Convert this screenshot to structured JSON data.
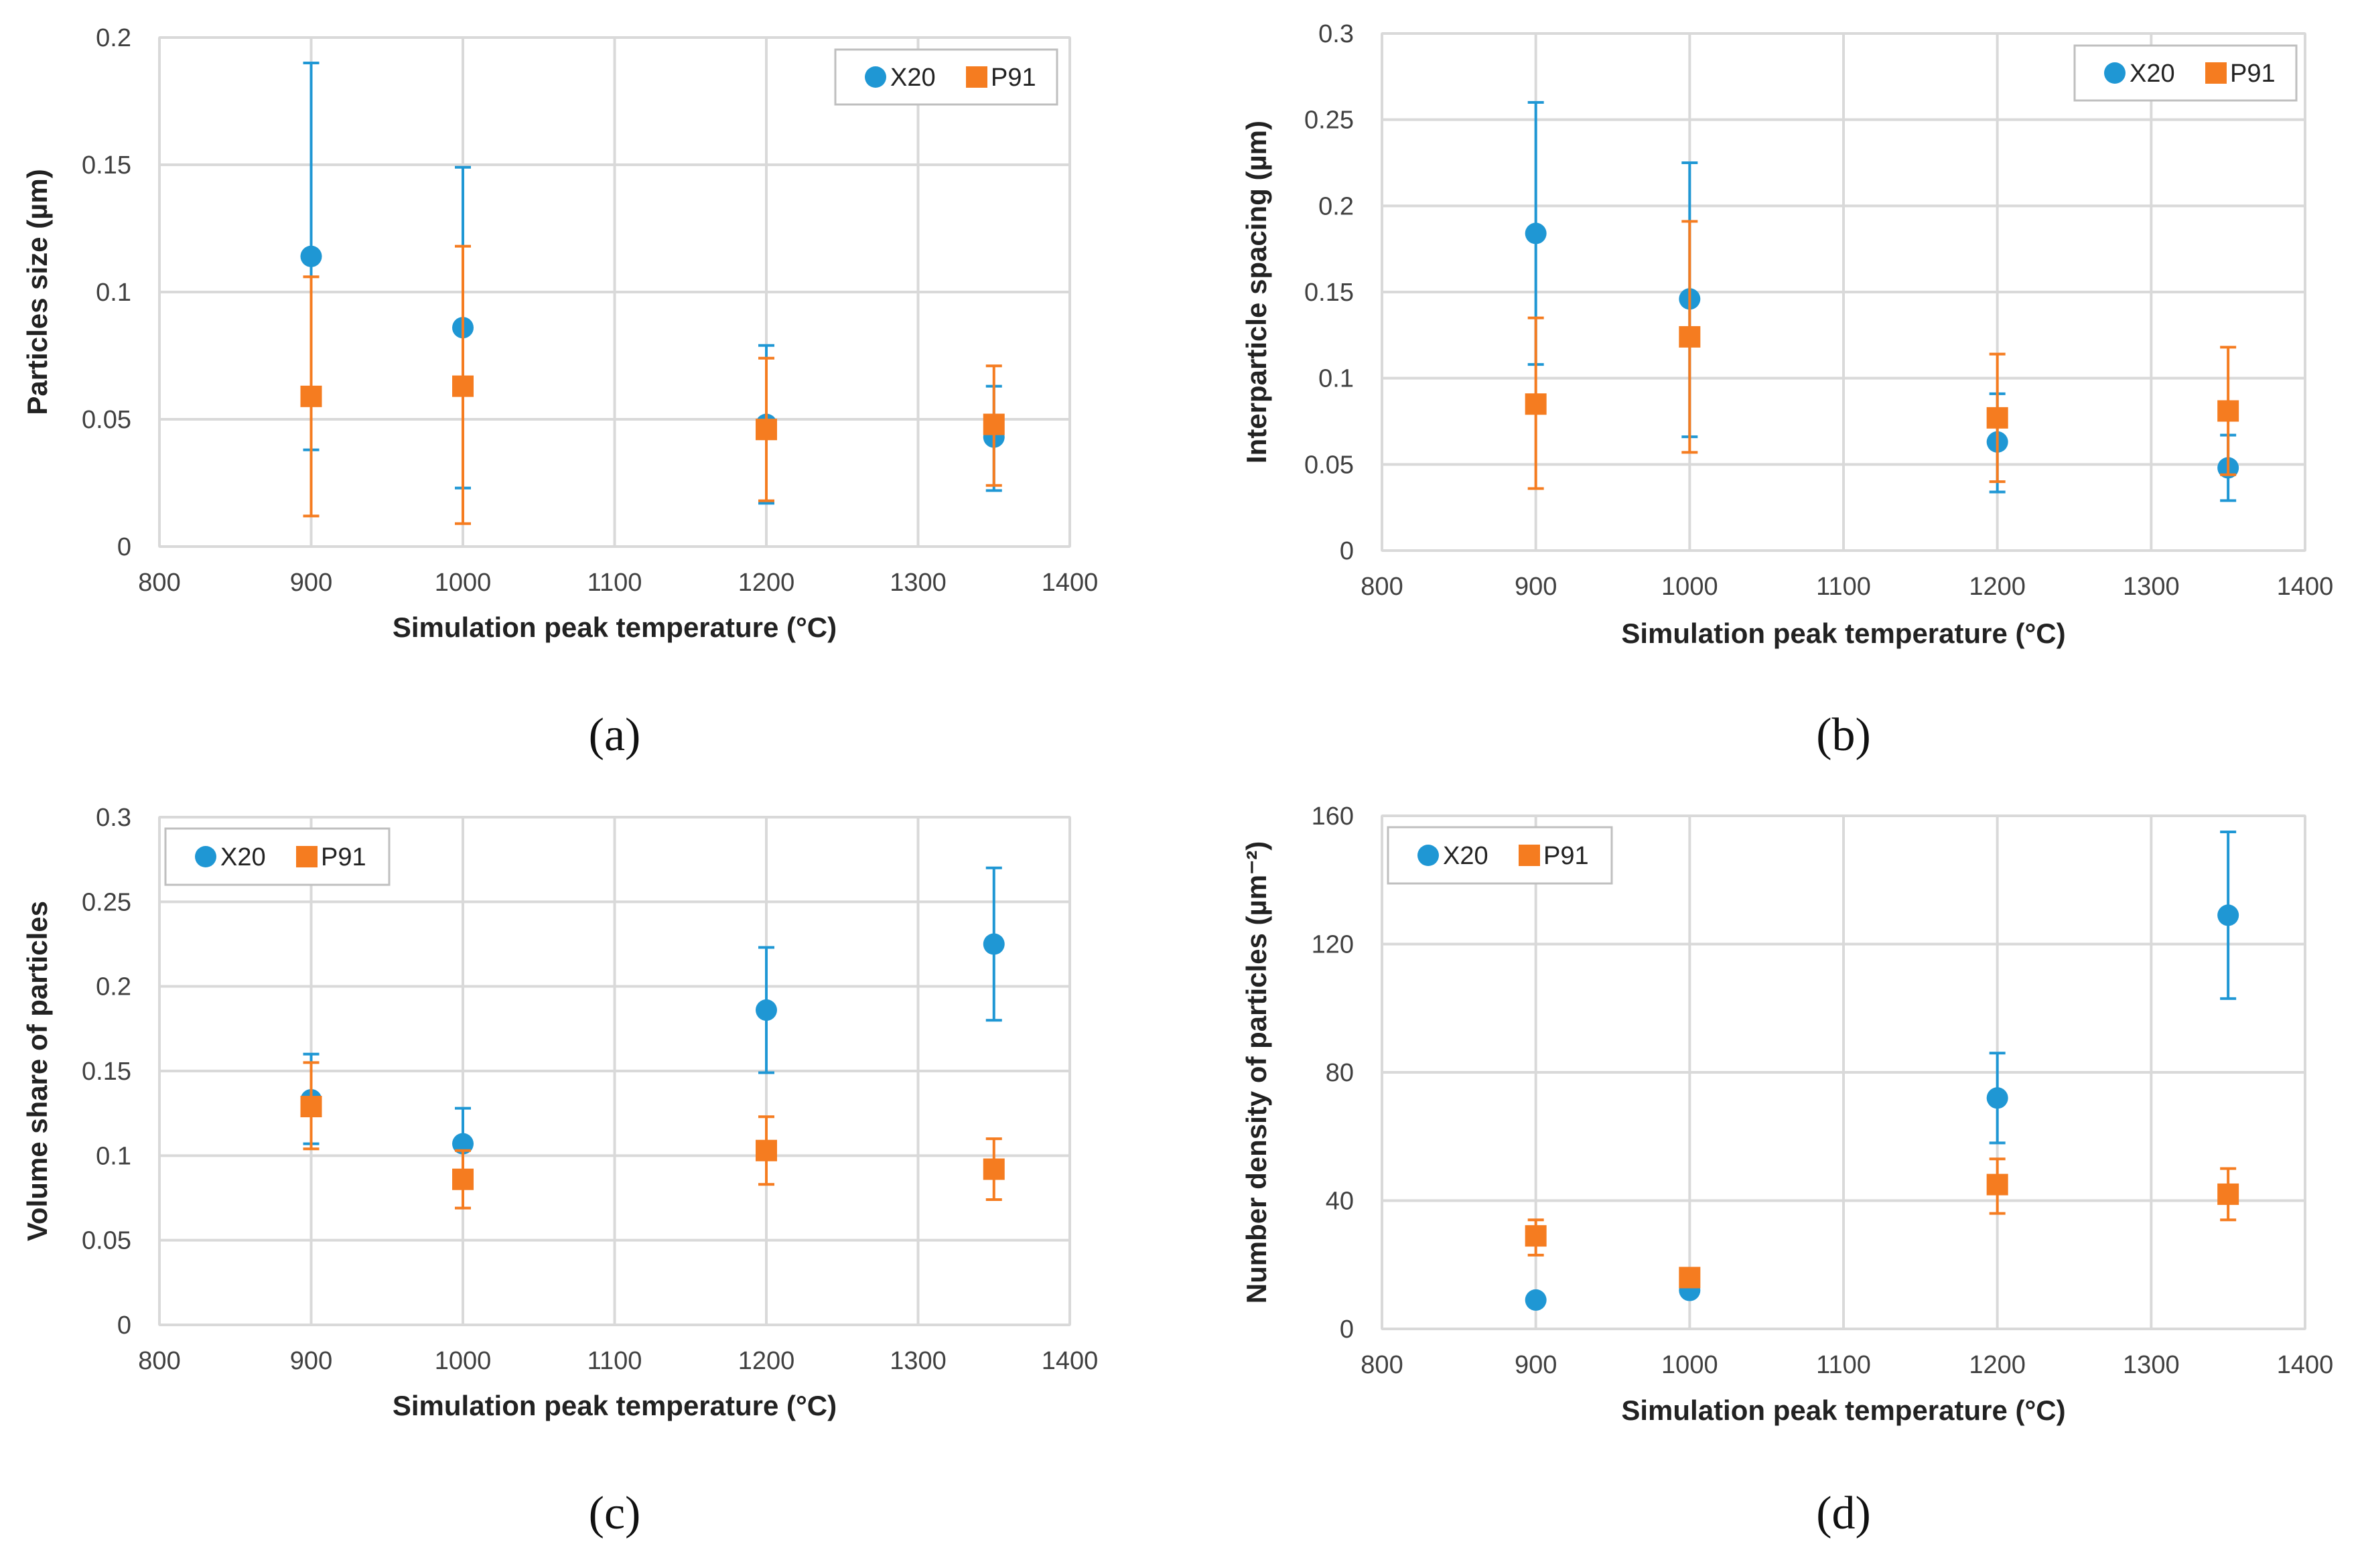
{
  "colors": {
    "X20": "#1f97d4",
    "P91": "#f57c20"
  },
  "chart_data": [
    {
      "type": "scatter",
      "panel_label": "(a)",
      "xlabel": "Simulation peak temperature (°C)",
      "ylabel": "Particles size (µm)",
      "xlim": [
        800,
        1400
      ],
      "ylim": [
        0,
        0.2
      ],
      "xticks": [
        "800",
        "900",
        "1000",
        "1100",
        "1200",
        "1300",
        "1400"
      ],
      "yticks": [
        "0",
        "0.05",
        "0.1",
        "0.15",
        "0.2"
      ],
      "grid": true,
      "legend_position": "top-right",
      "series": [
        {
          "name": "X20",
          "marker": "circle",
          "x": [
            900,
            1000,
            1200,
            1350
          ],
          "y": [
            0.114,
            0.086,
            0.048,
            0.043
          ],
          "err_low": [
            0.038,
            0.023,
            0.017,
            0.022
          ],
          "err_high": [
            0.19,
            0.149,
            0.079,
            0.063
          ]
        },
        {
          "name": "P91",
          "marker": "square",
          "x": [
            900,
            1000,
            1200,
            1350
          ],
          "y": [
            0.059,
            0.063,
            0.046,
            0.048
          ],
          "err_low": [
            0.012,
            0.009,
            0.018,
            0.024
          ],
          "err_high": [
            0.106,
            0.118,
            0.074,
            0.071
          ]
        }
      ]
    },
    {
      "type": "scatter",
      "panel_label": "(b)",
      "xlabel": "Simulation peak temperature (°C)",
      "ylabel": "Interparticle spacing (µm)",
      "xlim": [
        800,
        1400
      ],
      "ylim": [
        0,
        0.3
      ],
      "xticks": [
        "800",
        "900",
        "1000",
        "1100",
        "1200",
        "1300",
        "1400"
      ],
      "yticks": [
        "0",
        "0.05",
        "0.1",
        "0.15",
        "0.2",
        "0.25",
        "0.3"
      ],
      "grid": true,
      "legend_position": "top-right",
      "series": [
        {
          "name": "X20",
          "marker": "circle",
          "x": [
            900,
            1000,
            1200,
            1350
          ],
          "y": [
            0.184,
            0.146,
            0.063,
            0.048
          ],
          "err_low": [
            0.108,
            0.066,
            0.034,
            0.029
          ],
          "err_high": [
            0.26,
            0.225,
            0.091,
            0.067
          ]
        },
        {
          "name": "P91",
          "marker": "square",
          "x": [
            900,
            1000,
            1200,
            1350
          ],
          "y": [
            0.085,
            0.124,
            0.077,
            0.081
          ],
          "err_low": [
            0.036,
            0.057,
            0.04,
            0.044
          ],
          "err_high": [
            0.135,
            0.191,
            0.114,
            0.118
          ]
        }
      ]
    },
    {
      "type": "scatter",
      "panel_label": "(c)",
      "xlabel": "Simulation peak temperature (°C)",
      "ylabel": "Volume share of particles",
      "xlim": [
        800,
        1400
      ],
      "ylim": [
        0,
        0.3
      ],
      "xticks": [
        "800",
        "900",
        "1000",
        "1100",
        "1200",
        "1300",
        "1400"
      ],
      "yticks": [
        "0",
        "0.05",
        "0.1",
        "0.15",
        "0.2",
        "0.25",
        "0.3"
      ],
      "grid": true,
      "legend_position": "top-left",
      "series": [
        {
          "name": "X20",
          "marker": "circle",
          "x": [
            900,
            1000,
            1200,
            1350
          ],
          "y": [
            0.133,
            0.107,
            0.186,
            0.225
          ],
          "err_low": [
            0.107,
            0.086,
            0.149,
            0.18
          ],
          "err_high": [
            0.16,
            0.128,
            0.223,
            0.27
          ]
        },
        {
          "name": "P91",
          "marker": "square",
          "x": [
            900,
            1000,
            1200,
            1350
          ],
          "y": [
            0.129,
            0.086,
            0.103,
            0.092
          ],
          "err_low": [
            0.104,
            0.069,
            0.083,
            0.074
          ],
          "err_high": [
            0.155,
            0.103,
            0.123,
            0.11
          ]
        }
      ]
    },
    {
      "type": "scatter",
      "panel_label": "(d)",
      "xlabel": "Simulation peak temperature (°C)",
      "ylabel": "Number density of particles (µm⁻²)",
      "xlim": [
        800,
        1400
      ],
      "ylim": [
        0,
        160
      ],
      "xticks": [
        "800",
        "900",
        "1000",
        "1100",
        "1200",
        "1300",
        "1400"
      ],
      "yticks": [
        "0",
        "40",
        "80",
        "120",
        "160"
      ],
      "grid": true,
      "legend_position": "top-left",
      "series": [
        {
          "name": "X20",
          "marker": "circle",
          "x": [
            900,
            1000,
            1200,
            1350
          ],
          "y": [
            9,
            12,
            72,
            129
          ],
          "err_low": [
            9,
            12,
            58,
            103
          ],
          "err_high": [
            9,
            12,
            86,
            155
          ]
        },
        {
          "name": "P91",
          "marker": "square",
          "x": [
            900,
            1000,
            1200,
            1350
          ],
          "y": [
            29,
            16,
            45,
            42
          ],
          "err_low": [
            23,
            16,
            36,
            34
          ],
          "err_high": [
            34,
            16,
            53,
            50
          ]
        }
      ]
    }
  ]
}
